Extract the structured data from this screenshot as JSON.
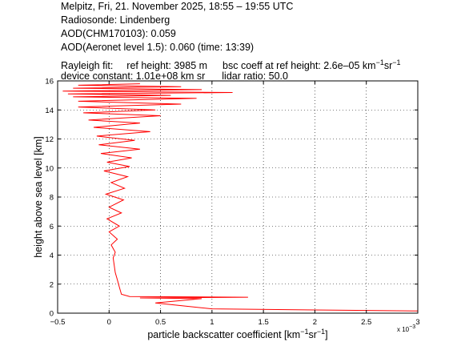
{
  "header": {
    "line1": "Melpitz, Fri, 21. November 2025, 18:55 – 19:55 UTC",
    "line2": "Radiosonde: Lindenberg",
    "line3": "AOD(CHM170103): 0.059",
    "line4": "AOD(Aeronet level 1.5): 0.060   (time: 13:39)",
    "rayleigh_label": "Rayleigh fit:",
    "ref_height": "ref height: 3985 m",
    "bsc_coeff_prefix": "bsc coeff at ref height: 2.6e–05 km",
    "bsc_unit_exp1": "−1",
    "bsc_unit_sr": "sr",
    "bsc_unit_exp2": "−1",
    "device_constant": "device constant: 1.01e+08 km sr",
    "lidar_ratio": "lidar ratio: 50.0"
  },
  "chart_data": {
    "type": "line",
    "xlabel_main": "particle backscatter coefficient [km",
    "xlabel_exp1": "−1",
    "xlabel_sr": "sr",
    "xlabel_exp2": "−1",
    "xlabel_end": "]",
    "ylabel": "height above sea level [km]",
    "x_multiplier": "x 10",
    "x_multiplier_exp": "−3",
    "xlim": [
      -0.5,
      3
    ],
    "ylim": [
      0,
      16
    ],
    "x_ticks": [
      "−0.5",
      "0",
      "0.5",
      "1",
      "1.5",
      "2",
      "2.5",
      "3"
    ],
    "y_ticks": [
      "0",
      "2",
      "4",
      "6",
      "8",
      "10",
      "12",
      "14",
      "16"
    ],
    "grid": true,
    "line_color": "#ff0000",
    "series": [
      {
        "values_note": "",
        "x": [
          3.0,
          1.0,
          0.45,
          0.9,
          0.3,
          1.35,
          0.2,
          0.12,
          0.1,
          0.08,
          0.06,
          0.05,
          0.04,
          0.06,
          0.02,
          0.08,
          0.0,
          0.1,
          -0.02,
          0.12,
          0.0,
          0.14,
          -0.03,
          0.15,
          0.02,
          0.18,
          -0.05,
          0.2,
          -0.02,
          0.22,
          -0.08,
          0.3,
          -0.1,
          0.25,
          -0.12,
          0.4,
          -0.15,
          0.3,
          -0.2,
          0.5,
          -0.25,
          0.45,
          -0.3,
          0.7,
          -0.3,
          0.85,
          -0.35,
          0.6,
          -0.4,
          1.2,
          -0.45,
          0.9,
          -0.35,
          0.7,
          -0.3,
          0.3
        ],
        "y": [
          0.15,
          0.3,
          0.7,
          1.0,
          1.05,
          1.1,
          1.15,
          1.3,
          1.8,
          2.3,
          2.8,
          3.3,
          3.8,
          4.2,
          4.7,
          5.1,
          5.6,
          6.0,
          6.5,
          6.9,
          7.3,
          7.8,
          8.2,
          8.6,
          9.0,
          9.4,
          9.8,
          10.1,
          10.4,
          10.7,
          11.0,
          11.3,
          11.6,
          11.9,
          12.2,
          12.5,
          12.8,
          13.1,
          13.3,
          13.6,
          13.8,
          14.0,
          14.2,
          14.4,
          14.6,
          14.8,
          14.9,
          15.0,
          15.1,
          15.2,
          15.3,
          15.4,
          15.5,
          15.6,
          15.7,
          15.8
        ]
      }
    ]
  }
}
